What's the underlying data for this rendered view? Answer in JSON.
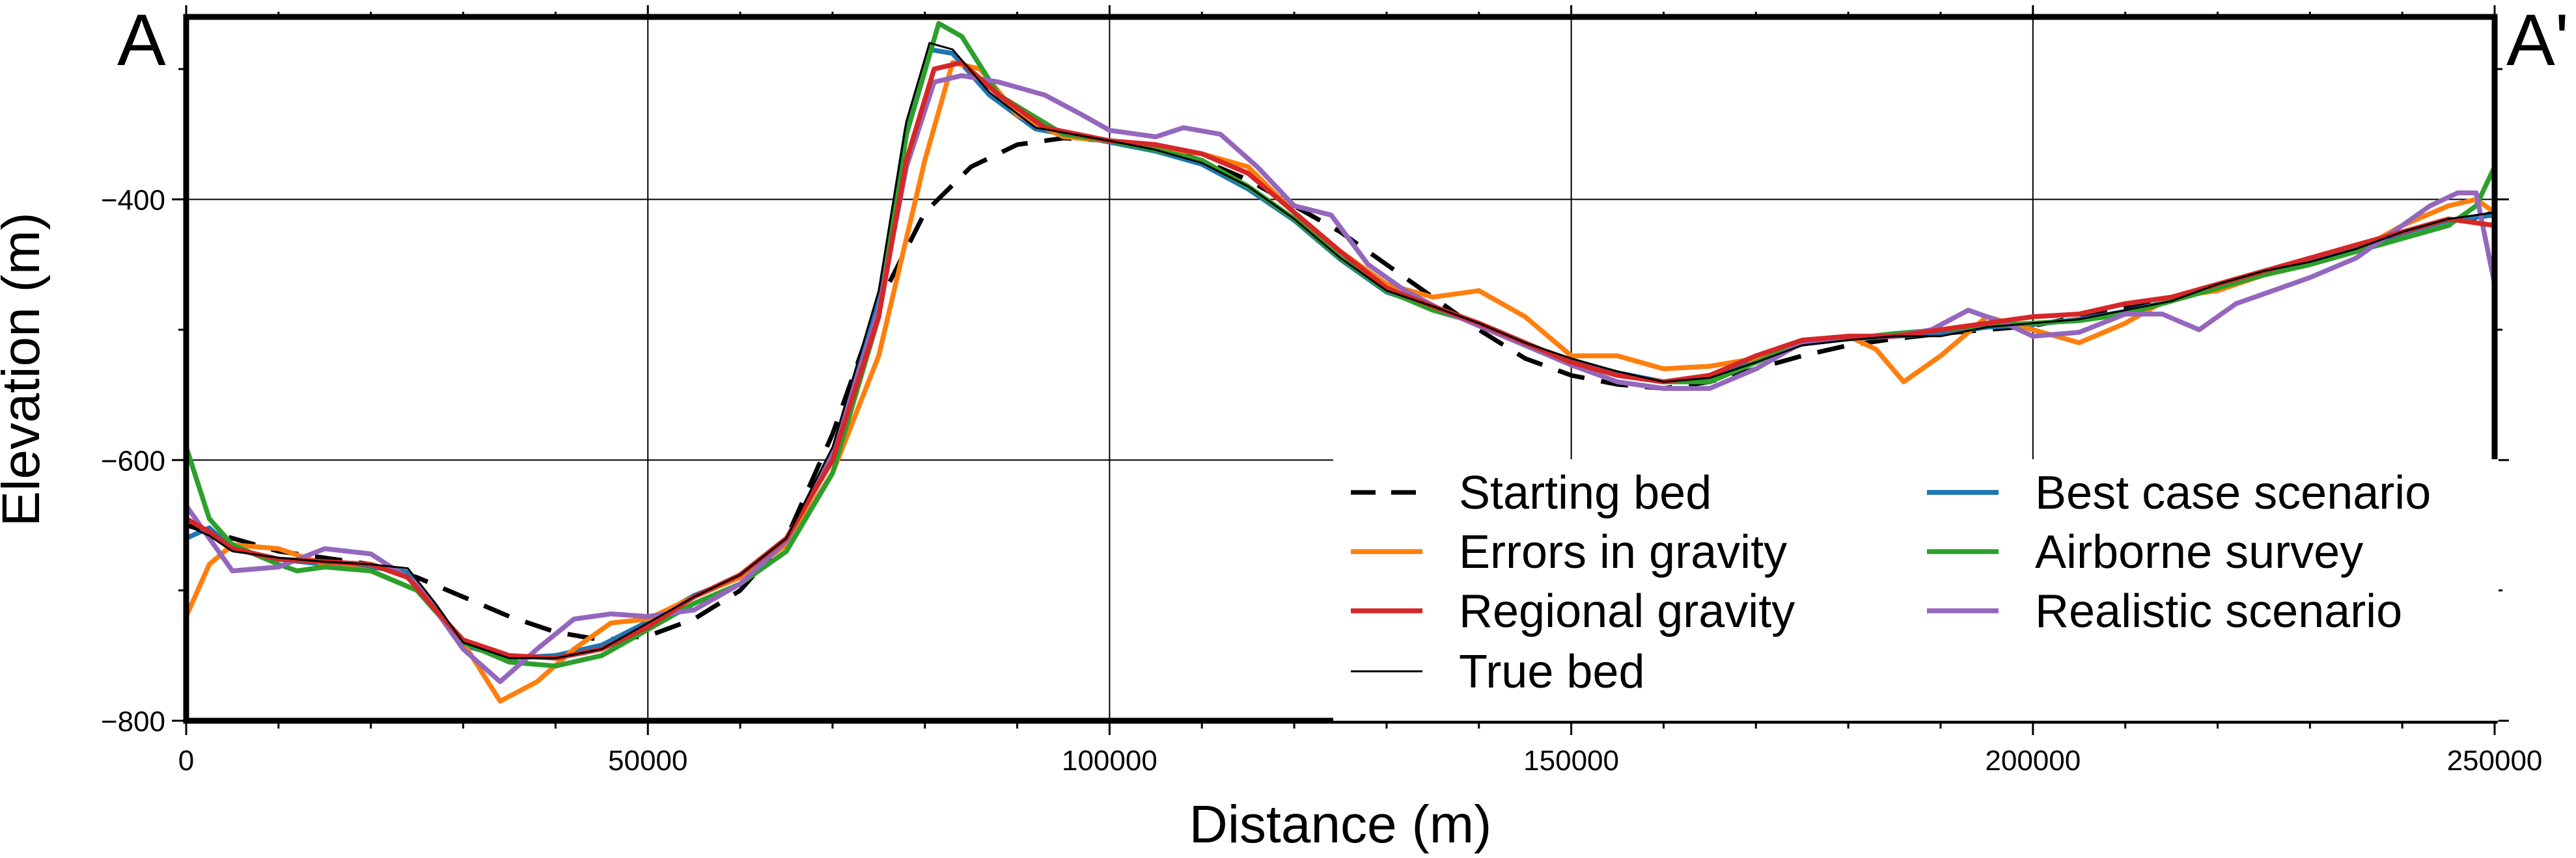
{
  "chart_data": {
    "type": "line",
    "title": "",
    "xlabel": "Distance (m)",
    "ylabel": "Elevation (m)",
    "xlim": [
      0,
      250000
    ],
    "ylim": [
      -800,
      -260
    ],
    "xticks": [
      0,
      50000,
      100000,
      150000,
      200000,
      250000
    ],
    "xtick_labels": [
      "0",
      "50000",
      "100000",
      "150000",
      "200000",
      "250000"
    ],
    "yticks": [
      -800,
      -600,
      -400
    ],
    "ytick_labels": [
      "−800",
      "−600",
      "−400"
    ],
    "grid": true,
    "legend_position": "lower-right",
    "profile_start_label": "A",
    "profile_end_label": "A'",
    "series": [
      {
        "name": "Starting bed",
        "color": "#000000",
        "style": "dashed",
        "x": [
          0,
          10000,
          20000,
          25000,
          30000,
          35000,
          40000,
          45000,
          50000,
          55000,
          60000,
          65000,
          70000,
          75000,
          80000,
          85000,
          90000,
          95000,
          100000,
          105000,
          110000,
          115000,
          120000,
          125000,
          130000,
          135000,
          140000,
          145000,
          150000,
          155000,
          160000,
          165000,
          170000,
          175000,
          180000,
          185000,
          190000,
          195000,
          200000,
          205000,
          210000,
          215000,
          220000,
          225000,
          230000,
          235000,
          240000,
          245000,
          250000
        ],
        "y": [
          -650,
          -670,
          -680,
          -690,
          -705,
          -720,
          -732,
          -738,
          -735,
          -722,
          -700,
          -660,
          -580,
          -480,
          -410,
          -375,
          -358,
          -353,
          -355,
          -360,
          -370,
          -385,
          -405,
          -425,
          -450,
          -475,
          -500,
          -522,
          -535,
          -542,
          -545,
          -540,
          -530,
          -520,
          -512,
          -507,
          -503,
          -500,
          -497,
          -490,
          -483,
          -475,
          -467,
          -458,
          -449,
          -440,
          -430,
          -420,
          -410
        ]
      },
      {
        "name": "Errors in gravity",
        "color": "#ff7f0e",
        "style": "solid",
        "x": [
          0,
          2500,
          5000,
          10000,
          15000,
          20000,
          25000,
          30000,
          34000,
          38000,
          42000,
          46000,
          50000,
          55000,
          60000,
          65000,
          70000,
          75000,
          80000,
          83000,
          86000,
          90000,
          95000,
          100000,
          105000,
          110000,
          115000,
          120000,
          125000,
          130000,
          135000,
          140000,
          145000,
          150000,
          155000,
          160000,
          165000,
          170000,
          175000,
          180000,
          183000,
          186000,
          190000,
          195000,
          200000,
          205000,
          210000,
          215000,
          220000,
          225000,
          230000,
          235000,
          240000,
          245000,
          248000,
          250000
        ],
        "y": [
          -720,
          -680,
          -665,
          -668,
          -680,
          -685,
          -700,
          -740,
          -785,
          -770,
          -745,
          -725,
          -722,
          -705,
          -690,
          -665,
          -610,
          -520,
          -370,
          -295,
          -300,
          -335,
          -352,
          -355,
          -360,
          -365,
          -375,
          -410,
          -440,
          -465,
          -475,
          -470,
          -490,
          -520,
          -520,
          -530,
          -528,
          -522,
          -510,
          -505,
          -515,
          -540,
          -520,
          -490,
          -500,
          -510,
          -495,
          -475,
          -470,
          -458,
          -450,
          -440,
          -420,
          -405,
          -400,
          -410
        ]
      },
      {
        "name": "Regional gravity",
        "color": "#d62728",
        "style": "solid",
        "x": [
          0,
          2500,
          5000,
          10000,
          15000,
          20000,
          24000,
          27000,
          30000,
          35000,
          40000,
          45000,
          50000,
          55000,
          60000,
          65000,
          70000,
          75000,
          78000,
          81000,
          84000,
          88000,
          93000,
          100000,
          105000,
          110000,
          115000,
          120000,
          125000,
          130000,
          135000,
          140000,
          145000,
          150000,
          155000,
          160000,
          165000,
          170000,
          175000,
          180000,
          185000,
          190000,
          195000,
          200000,
          205000,
          210000,
          215000,
          220000,
          225000,
          230000,
          235000,
          240000,
          245000,
          250000
        ],
        "y": [
          -645,
          -655,
          -668,
          -676,
          -678,
          -680,
          -690,
          -715,
          -738,
          -750,
          -752,
          -745,
          -728,
          -705,
          -688,
          -660,
          -600,
          -490,
          -370,
          -300,
          -295,
          -320,
          -345,
          -355,
          -358,
          -365,
          -380,
          -410,
          -440,
          -468,
          -482,
          -495,
          -510,
          -525,
          -535,
          -540,
          -535,
          -520,
          -508,
          -505,
          -505,
          -500,
          -495,
          -490,
          -488,
          -480,
          -475,
          -465,
          -455,
          -445,
          -435,
          -425,
          -415,
          -420
        ]
      },
      {
        "name": "True bed",
        "color": "#000000",
        "style": "thin",
        "x": [
          0,
          2500,
          5000,
          10000,
          15000,
          20000,
          24000,
          27000,
          30000,
          35000,
          40000,
          45000,
          50000,
          55000,
          60000,
          65000,
          70000,
          75000,
          78000,
          80500,
          83000,
          87000,
          92000,
          100000,
          105000,
          110000,
          115000,
          120000,
          125000,
          130000,
          135000,
          140000,
          145000,
          150000,
          155000,
          160000,
          165000,
          170000,
          175000,
          180000,
          185000,
          190000,
          195000,
          200000,
          205000,
          210000,
          215000,
          220000,
          225000,
          230000,
          235000,
          240000,
          245000,
          250000
        ],
        "y": [
          -650,
          -658,
          -670,
          -675,
          -678,
          -680,
          -683,
          -710,
          -740,
          -752,
          -752,
          -745,
          -725,
          -705,
          -688,
          -660,
          -590,
          -470,
          -340,
          -280,
          -285,
          -318,
          -345,
          -355,
          -362,
          -372,
          -390,
          -415,
          -445,
          -470,
          -482,
          -495,
          -510,
          -522,
          -532,
          -540,
          -537,
          -525,
          -512,
          -508,
          -505,
          -505,
          -498,
          -495,
          -492,
          -485,
          -478,
          -465,
          -455,
          -448,
          -438,
          -425,
          -415,
          -410
        ]
      },
      {
        "name": "Best case scenario",
        "color": "#1f77b4",
        "style": "solid",
        "x": [
          0,
          2500,
          5000,
          10000,
          15000,
          20000,
          24000,
          27000,
          30000,
          35000,
          40000,
          45000,
          50000,
          55000,
          60000,
          65000,
          70000,
          75000,
          78000,
          80500,
          83000,
          87000,
          92000,
          100000,
          105000,
          110000,
          115000,
          120000,
          125000,
          130000,
          135000,
          140000,
          145000,
          150000,
          155000,
          160000,
          165000,
          170000,
          175000,
          180000,
          185000,
          190000,
          195000,
          200000,
          205000,
          210000,
          215000,
          220000,
          225000,
          230000,
          235000,
          240000,
          245000,
          250000
        ],
        "y": [
          -660,
          -652,
          -668,
          -676,
          -680,
          -682,
          -686,
          -712,
          -742,
          -752,
          -750,
          -742,
          -724,
          -704,
          -690,
          -662,
          -595,
          -478,
          -345,
          -285,
          -288,
          -320,
          -346,
          -356,
          -363,
          -373,
          -392,
          -416,
          -446,
          -471,
          -483,
          -496,
          -511,
          -524,
          -533,
          -540,
          -536,
          -524,
          -511,
          -507,
          -505,
          -503,
          -498,
          -496,
          -492,
          -486,
          -478,
          -466,
          -456,
          -448,
          -438,
          -426,
          -416,
          -412
        ]
      },
      {
        "name": "Airborne survey",
        "color": "#2ca02c",
        "style": "solid",
        "x": [
          0,
          2500,
          5000,
          10000,
          12000,
          15000,
          20000,
          25000,
          30000,
          35000,
          40000,
          45000,
          50000,
          55000,
          60000,
          65000,
          70000,
          75000,
          78000,
          81500,
          84000,
          88000,
          95000,
          100000,
          105000,
          110000,
          115000,
          120000,
          125000,
          130000,
          135000,
          140000,
          145000,
          150000,
          155000,
          160000,
          165000,
          170000,
          175000,
          180000,
          185000,
          190000,
          195000,
          200000,
          205000,
          210000,
          215000,
          220000,
          225000,
          230000,
          235000,
          240000,
          245000,
          248000,
          250000
        ],
        "y": [
          -590,
          -645,
          -665,
          -680,
          -685,
          -682,
          -685,
          -700,
          -740,
          -755,
          -758,
          -750,
          -730,
          -710,
          -695,
          -670,
          -610,
          -490,
          -350,
          -265,
          -275,
          -320,
          -350,
          -355,
          -362,
          -370,
          -390,
          -415,
          -445,
          -470,
          -485,
          -495,
          -510,
          -525,
          -535,
          -540,
          -540,
          -525,
          -510,
          -507,
          -503,
          -500,
          -497,
          -495,
          -493,
          -488,
          -478,
          -468,
          -458,
          -450,
          -440,
          -430,
          -420,
          -405,
          -375
        ]
      },
      {
        "name": "Realistic scenario",
        "color": "#9467bd",
        "style": "solid",
        "x": [
          0,
          2500,
          5000,
          10000,
          15000,
          20000,
          25000,
          30000,
          34000,
          38000,
          42000,
          46000,
          50000,
          55000,
          60000,
          65000,
          70000,
          75000,
          78000,
          81000,
          84000,
          88000,
          93000,
          97000,
          100000,
          105000,
          108000,
          112000,
          116000,
          120000,
          124000,
          128000,
          132000,
          136000,
          140000,
          145000,
          150000,
          155000,
          160000,
          165000,
          170000,
          175000,
          180000,
          185000,
          189000,
          193000,
          197000,
          200000,
          205000,
          210000,
          214000,
          218000,
          222000,
          226000,
          230000,
          235000,
          240000,
          243000,
          246000,
          248000,
          250000
        ],
        "y": [
          -635,
          -660,
          -685,
          -682,
          -668,
          -672,
          -695,
          -745,
          -770,
          -745,
          -722,
          -718,
          -720,
          -715,
          -695,
          -662,
          -595,
          -485,
          -375,
          -310,
          -305,
          -310,
          -320,
          -335,
          -347,
          -352,
          -345,
          -350,
          -375,
          -405,
          -412,
          -450,
          -470,
          -485,
          -497,
          -512,
          -527,
          -540,
          -545,
          -545,
          -530,
          -510,
          -505,
          -505,
          -500,
          -485,
          -495,
          -505,
          -502,
          -488,
          -488,
          -500,
          -480,
          -470,
          -460,
          -445,
          -420,
          -405,
          -395,
          -395,
          -465
        ]
      }
    ]
  }
}
